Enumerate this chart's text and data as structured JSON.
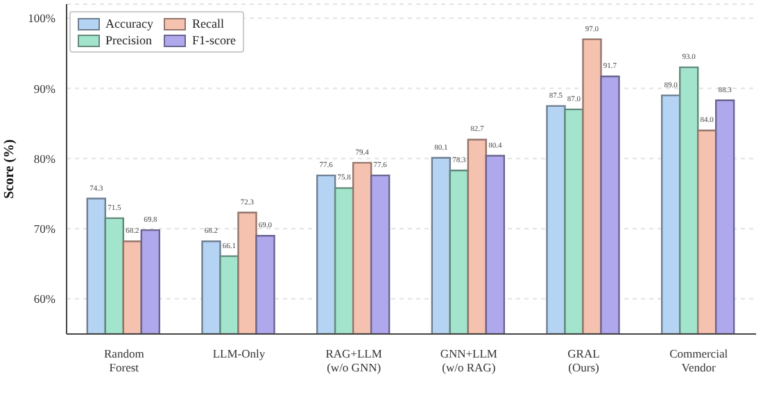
{
  "chart_data": {
    "type": "bar",
    "ylabel": "Score (%)",
    "categories": [
      "Random\nForest",
      "LLM-Only",
      "RAG+LLM\n(w/o GNN)",
      "GNN+LLM\n(w/o RAG)",
      "GRAL\n(Ours)",
      "Commercial\nVendor"
    ],
    "series": [
      {
        "name": "Accuracy",
        "color": "#b5d3f2",
        "values": [
          74.3,
          68.2,
          77.6,
          80.1,
          87.5,
          89.0
        ],
        "value_labels": [
          "74.3",
          "68.2",
          "77.6",
          "80.1",
          "87.5",
          "89.0"
        ]
      },
      {
        "name": "Precision",
        "color": "#a3e4cc",
        "values": [
          71.5,
          66.1,
          75.8,
          78.3,
          87.0,
          93.0
        ],
        "value_labels": [
          "71.5",
          "66.1",
          "75.8",
          "78.3",
          "87.0",
          "93.0"
        ]
      },
      {
        "name": "Recall",
        "color": "#f6c2b0",
        "values": [
          68.2,
          72.3,
          79.4,
          82.7,
          97.0,
          84.0
        ],
        "value_labels": [
          "68.2",
          "72.3",
          "79.4",
          "82.7",
          "97.0",
          "84.0"
        ]
      },
      {
        "name": "F1-score",
        "color": "#b0a8ec",
        "values": [
          69.8,
          69.0,
          77.6,
          80.4,
          91.7,
          88.3
        ],
        "value_labels": [
          "69.8",
          "69.0",
          "77.6",
          "80.4",
          "91.7",
          "88.3"
        ]
      }
    ],
    "ylim": [
      55,
      102
    ],
    "yticks": [
      {
        "value": 60,
        "label": "60%"
      },
      {
        "value": 70,
        "label": "70%"
      },
      {
        "value": 80,
        "label": "80%"
      },
      {
        "value": 90,
        "label": "90%"
      },
      {
        "value": 100,
        "label": "100%"
      }
    ],
    "grid": "y",
    "legend": "top left"
  }
}
